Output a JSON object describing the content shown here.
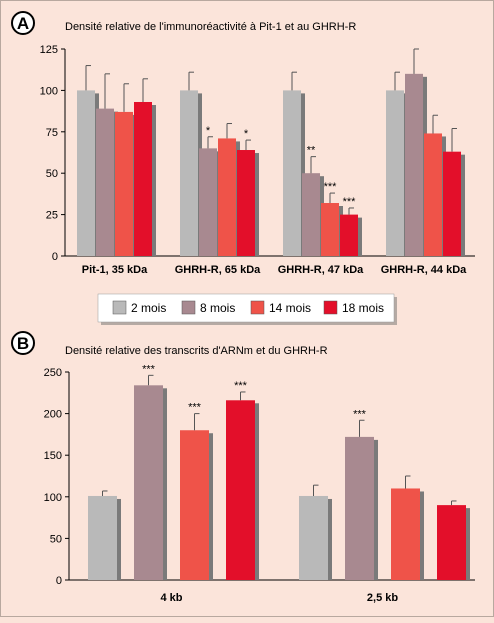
{
  "colors": {
    "2 mois": "#b9b9b9",
    "8 mois": "#a88990",
    "14 mois": "#ef5349",
    "18 mois": "#e30f2a",
    "shadow": "#7a7a7a",
    "background": "#fbe4da"
  },
  "legend": {
    "items": [
      {
        "label": "2 mois",
        "color_key": "2 mois"
      },
      {
        "label": "8 mois",
        "color_key": "8 mois"
      },
      {
        "label": "14 mois",
        "color_key": "14 mois"
      },
      {
        "label": "18 mois",
        "color_key": "18 mois"
      }
    ]
  },
  "chart_data": [
    {
      "panel": "A",
      "type": "bar",
      "title": "Densité relative de l'immunoréactivité à Pit-1 et au GHRH-R",
      "xlabel": "",
      "ylabel": "",
      "ylim": [
        0,
        125
      ],
      "yticks": [
        0,
        25,
        50,
        75,
        100,
        125
      ],
      "grid": false,
      "categories": [
        "Pit-1, 35 kDa",
        "GHRH-R, 65 kDa",
        "GHRH-R, 47 kDa",
        "GHRH-R, 44 kDa"
      ],
      "series": [
        {
          "name": "2 mois",
          "values": [
            100,
            100,
            100,
            100
          ],
          "errors": [
            15,
            11,
            11,
            11
          ],
          "significance": [
            "",
            "",
            "",
            ""
          ]
        },
        {
          "name": "8 mois",
          "values": [
            89,
            65,
            50,
            110
          ],
          "errors": [
            21,
            7,
            10,
            15
          ],
          "significance": [
            "",
            "*",
            "**",
            ""
          ]
        },
        {
          "name": "14 mois",
          "values": [
            87,
            71,
            32,
            74
          ],
          "errors": [
            17,
            9,
            6,
            11
          ],
          "significance": [
            "",
            "",
            "***",
            ""
          ]
        },
        {
          "name": "18 mois",
          "values": [
            93,
            64,
            25,
            63
          ],
          "errors": [
            14,
            6,
            4,
            14
          ],
          "significance": [
            "",
            "*",
            "***",
            ""
          ]
        }
      ]
    },
    {
      "panel": "B",
      "type": "bar",
      "title": "Densité relative des transcrits d'ARNm et du GHRH-R",
      "xlabel": "",
      "ylabel": "",
      "ylim": [
        0,
        250
      ],
      "yticks": [
        0,
        50,
        100,
        150,
        200,
        250
      ],
      "grid": false,
      "categories": [
        "4 kb",
        "2,5 kb"
      ],
      "series": [
        {
          "name": "2 mois",
          "values": [
            101,
            101
          ],
          "errors": [
            6,
            13
          ],
          "significance": [
            "",
            ""
          ]
        },
        {
          "name": "8 mois",
          "values": [
            234,
            172
          ],
          "errors": [
            12,
            20
          ],
          "significance": [
            "***",
            "***"
          ]
        },
        {
          "name": "14 mois",
          "values": [
            180,
            110
          ],
          "errors": [
            20,
            15
          ],
          "significance": [
            "***",
            ""
          ]
        },
        {
          "name": "18 mois",
          "values": [
            216,
            90
          ],
          "errors": [
            10,
            5
          ],
          "significance": [
            "***",
            ""
          ]
        }
      ]
    }
  ]
}
